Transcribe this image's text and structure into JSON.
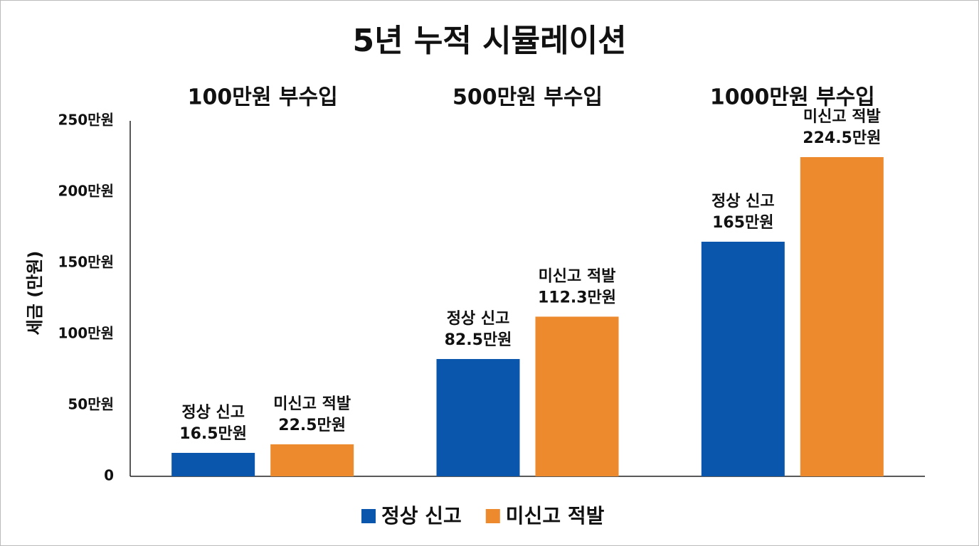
{
  "chart_data": {
    "type": "bar",
    "title": "5년 누적 시뮬레이션",
    "y_label": "세금 (만원)",
    "categories": [
      "100만원 부수입",
      "500만원 부수입",
      "1000만원 부수입"
    ],
    "series": [
      {
        "name": "정상 신고",
        "color": "#0a56ad",
        "values": [
          16.5,
          82.5,
          165
        ],
        "value_labels": [
          "16.5만원",
          "82.5만원",
          "165만원"
        ]
      },
      {
        "name": "미신고 적발",
        "color": "#ee8a2e",
        "values": [
          22.5,
          112.3,
          224.5
        ],
        "value_labels": [
          "22.5만원",
          "112.3만원",
          "224.5만원"
        ]
      }
    ],
    "ylim": [
      0,
      250
    ],
    "yticks": [
      0,
      {
        "value": 50,
        "label": "50만원"
      },
      {
        "value": 100,
        "label": "100만원"
      },
      {
        "value": 150,
        "label": "150만원"
      },
      {
        "value": 200,
        "label": "200만원"
      },
      {
        "value": 250,
        "label": "250만원"
      }
    ],
    "grid": false,
    "legend": "bottom"
  }
}
